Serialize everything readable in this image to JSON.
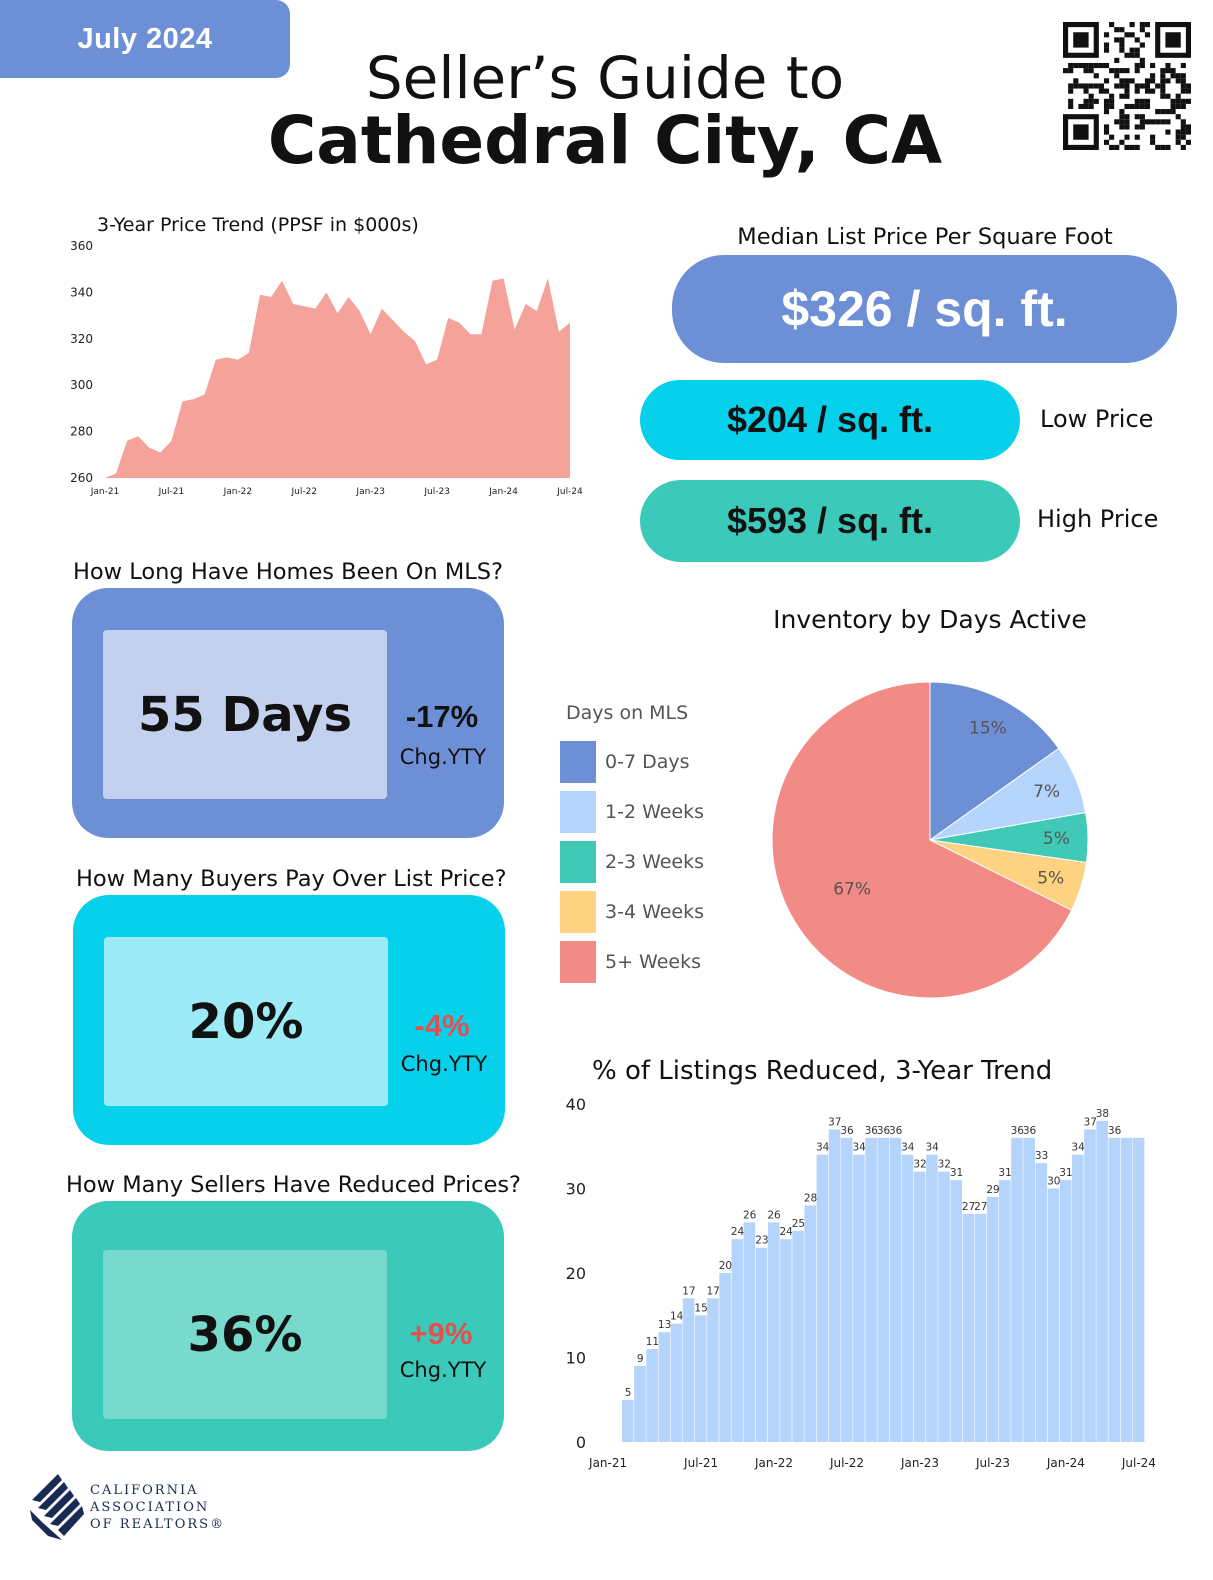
{
  "header": {
    "date": "July 2024",
    "title_line1": "Seller’s Guide to",
    "title_line2": "Cathedral City, CA"
  },
  "price_trend": {
    "title": "3-Year Price Trend (PPSF in $000s)",
    "chart_data": {
      "type": "area",
      "title": "3-Year Price Trend (PPSF in $000s)",
      "x_ticks": [
        "Jan-21",
        "Jul-21",
        "Jan-22",
        "Jul-22",
        "Jan-23",
        "Jul-23",
        "Jan-24",
        "Jul-24"
      ],
      "y_ticks": [
        260,
        280,
        300,
        320,
        340,
        360
      ],
      "ylim": [
        260,
        360
      ],
      "x": [
        "Jan-21",
        "Feb-21",
        "Mar-21",
        "Apr-21",
        "May-21",
        "Jun-21",
        "Jul-21",
        "Aug-21",
        "Sep-21",
        "Oct-21",
        "Nov-21",
        "Dec-21",
        "Jan-22",
        "Feb-22",
        "Mar-22",
        "Apr-22",
        "May-22",
        "Jun-22",
        "Jul-22",
        "Aug-22",
        "Sep-22",
        "Oct-22",
        "Nov-22",
        "Dec-22",
        "Jan-23",
        "Feb-23",
        "Mar-23",
        "Apr-23",
        "May-23",
        "Jun-23",
        "Jul-23",
        "Aug-23",
        "Sep-23",
        "Oct-23",
        "Nov-23",
        "Dec-23",
        "Jan-24",
        "Feb-24",
        "Mar-24",
        "Apr-24",
        "May-24",
        "Jun-24",
        "Jul-24"
      ],
      "values": [
        260,
        262,
        276,
        278,
        273,
        271,
        276,
        293,
        294,
        296,
        311,
        312,
        311,
        314,
        339,
        338,
        345,
        335,
        334,
        333,
        340,
        331,
        338,
        332,
        322,
        333,
        328,
        323,
        319,
        309,
        311,
        329,
        327,
        322,
        322,
        345,
        346,
        324,
        335,
        332,
        346,
        323,
        327
      ],
      "color": "#f4a29a",
      "grid": false
    }
  },
  "median_price": {
    "title": "Median List Price Per Square Foot",
    "median": "$326 / sq. ft.",
    "low": "$204 / sq. ft.",
    "low_label": "Low Price",
    "high": "$593 / sq. ft.",
    "high_label": "High Price"
  },
  "days_on_mls": {
    "question": "How Long Have Homes Been On MLS?",
    "value": "55 Days",
    "change": "-17%",
    "change_label": "Chg.YTY"
  },
  "over_list": {
    "question": "How Many Buyers Pay Over List Price?",
    "value": "20%",
    "change": "-4%",
    "change_label": "Chg.YTY"
  },
  "reduced": {
    "question": "How Many Sellers Have Reduced Prices?",
    "value": "36%",
    "change": "+9%",
    "change_label": "Chg.YTY"
  },
  "inventory": {
    "title": "Inventory by Days Active",
    "legend_title": "Days on MLS",
    "chart_data": {
      "type": "pie",
      "title": "Inventory by Days Active",
      "legend_title": "Days on MLS",
      "legend_placement": "left",
      "labels": [
        "0-7 Days",
        "1-2 Weeks",
        "2-3 Weeks",
        "3-4 Weeks",
        "5+ Weeks"
      ],
      "values": [
        15,
        7,
        5,
        5,
        67
      ],
      "value_labels": [
        "15%",
        "7%",
        "5%",
        "5%",
        "67%"
      ],
      "colors": [
        "#6d8fd6",
        "#b5d4fb",
        "#40c9b6",
        "#fdd280",
        "#f28b85"
      ]
    }
  },
  "reduced_trend": {
    "title": "% of Listings Reduced, 3-Year Trend",
    "chart_data": {
      "type": "bar",
      "title": "% of Listings Reduced, 3-Year Trend",
      "x_ticks": [
        "Jan-21",
        "Jul-21",
        "Jan-22",
        "Jul-22",
        "Jan-23",
        "Jul-23",
        "Jan-24",
        "Jul-24"
      ],
      "y_ticks": [
        0,
        10,
        20,
        30,
        40
      ],
      "ylim": [
        0,
        40
      ],
      "categories": [
        "Jan-21",
        "Feb-21",
        "Mar-21",
        "Apr-21",
        "May-21",
        "Jun-21",
        "Jul-21",
        "Aug-21",
        "Sep-21",
        "Oct-21",
        "Nov-21",
        "Dec-21",
        "Jan-22",
        "Feb-22",
        "Mar-22",
        "Apr-22",
        "May-22",
        "Jun-22",
        "Jul-22",
        "Aug-22",
        "Sep-22",
        "Oct-22",
        "Nov-22",
        "Dec-22",
        "Jan-23",
        "Feb-23",
        "Mar-23",
        "Apr-23",
        "May-23",
        "Jun-23",
        "Jul-23",
        "Aug-23",
        "Sep-23",
        "Oct-23",
        "Nov-23",
        "Dec-23",
        "Jan-24",
        "Feb-24",
        "Mar-24",
        "Apr-24",
        "May-24",
        "Jun-24",
        "Jul-24"
      ],
      "values": [
        5,
        9,
        11,
        13,
        14,
        17,
        15,
        17,
        20,
        24,
        26,
        23,
        26,
        24,
        25,
        28,
        34,
        37,
        36,
        34,
        36,
        36,
        36,
        34,
        32,
        34,
        32,
        31,
        27,
        27,
        29,
        31,
        36,
        36,
        33,
        30,
        31,
        34,
        37,
        38,
        36,
        36,
        36
      ],
      "value_labels": [
        "5",
        "9",
        "11",
        "13",
        "14",
        "17",
        "15",
        "17",
        "20",
        "24",
        "26",
        "23",
        "26",
        "24",
        "25",
        "28",
        "34",
        "37",
        "36",
        "34",
        "36",
        "36",
        "36",
        "34",
        "32",
        "34",
        "32",
        "31",
        "27",
        "27",
        "29",
        "31",
        "36",
        "36",
        "33",
        "30",
        "31",
        "34",
        "37",
        "38",
        "36",
        "",
        ""
      ],
      "color": "#b5d4fb",
      "grid": false
    }
  },
  "footer": {
    "org_line1": "CALIFORNIA",
    "org_line2": "ASSOCIATION",
    "org_line3": "OF REALTORS®"
  }
}
